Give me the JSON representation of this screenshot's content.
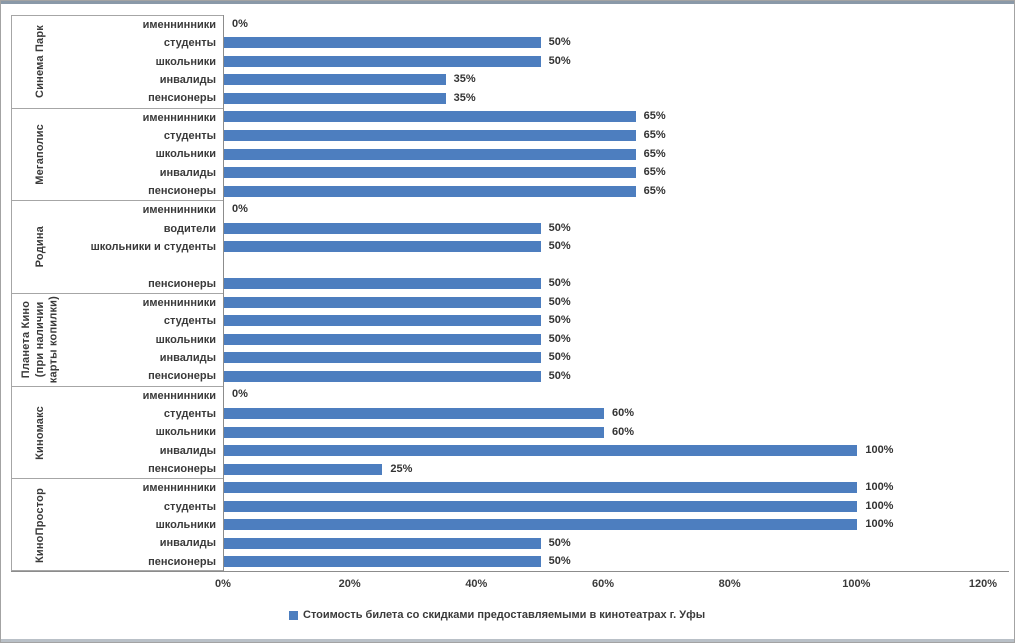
{
  "chart_data": {
    "type": "bar",
    "orientation": "horizontal",
    "title": "",
    "xlabel": "",
    "ylabel": "",
    "xlim": [
      0,
      120
    ],
    "grid": false,
    "legend_position": "bottom",
    "legend": "Стоимость билета со скидками предоставляемыми в кинотеатрах г. Уфы",
    "bar_color": "#4d7ebf",
    "x_ticks": [
      "0%",
      "20%",
      "40%",
      "60%",
      "80%",
      "100%",
      "120%"
    ],
    "groups": [
      {
        "name": "Синема Парк",
        "rows": [
          {
            "label": "именнинники",
            "value": 0
          },
          {
            "label": "студенты",
            "value": 50
          },
          {
            "label": "школьники",
            "value": 50
          },
          {
            "label": "инвалиды",
            "value": 35
          },
          {
            "label": "пенсионеры",
            "value": 35
          }
        ]
      },
      {
        "name": "Мегаполис",
        "rows": [
          {
            "label": "именнинники",
            "value": 65
          },
          {
            "label": "студенты",
            "value": 65
          },
          {
            "label": "школьники",
            "value": 65
          },
          {
            "label": "инвалиды",
            "value": 65
          },
          {
            "label": "пенсионеры",
            "value": 65
          }
        ]
      },
      {
        "name": "Родина",
        "rows": [
          {
            "label": "именнинники",
            "value": 0
          },
          {
            "label": "водители",
            "value": 50
          },
          {
            "label": "школьники и студенты",
            "value": 50
          },
          {
            "label": "",
            "value": null
          },
          {
            "label": "пенсионеры",
            "value": 50
          }
        ]
      },
      {
        "name": "Планета Кино (при наличии карты копилки)",
        "name_lines": [
          "Планета Кино",
          "(при наличии",
          "карты копилки)"
        ],
        "rows": [
          {
            "label": "именнинники",
            "value": 50
          },
          {
            "label": "студенты",
            "value": 50
          },
          {
            "label": "школьники",
            "value": 50
          },
          {
            "label": "инвалиды",
            "value": 50
          },
          {
            "label": "пенсионеры",
            "value": 50
          }
        ]
      },
      {
        "name": "Киномакс",
        "rows": [
          {
            "label": "именнинники",
            "value": 0
          },
          {
            "label": "студенты",
            "value": 60
          },
          {
            "label": "школьники",
            "value": 60
          },
          {
            "label": "инвалиды",
            "value": 100
          },
          {
            "label": "пенсионеры",
            "value": 25
          }
        ]
      },
      {
        "name": "КиноПростор",
        "rows": [
          {
            "label": "именнинники",
            "value": 100
          },
          {
            "label": "студенты",
            "value": 100
          },
          {
            "label": "школьники",
            "value": 100
          },
          {
            "label": "инвалиды",
            "value": 50
          },
          {
            "label": "пенсионеры",
            "value": 50
          }
        ]
      }
    ]
  }
}
